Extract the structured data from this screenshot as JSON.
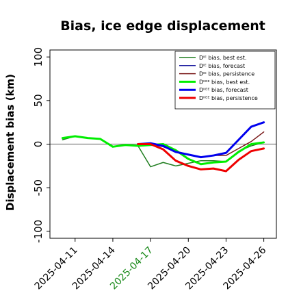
{
  "chart_data": {
    "type": "line",
    "title": "Bias, ice edge displacement",
    "ylabel": "Displacement bias (km)",
    "xlabel": "",
    "ylim": [
      -108,
      108
    ],
    "xlim": [
      "2025-04-09",
      "2025-04-27"
    ],
    "yticks": [
      -100,
      -50,
      0,
      50,
      100
    ],
    "xticks": [
      {
        "date": "2025-04-11",
        "label": "2025-04-11",
        "color": "#000000"
      },
      {
        "date": "2025-04-14",
        "label": "2025-04-14",
        "color": "#000000"
      },
      {
        "date": "2025-04-17",
        "label": "2025-04-17",
        "color": "#1a8a1a"
      },
      {
        "date": "2025-04-20",
        "label": "2025-04-20",
        "color": "#000000"
      },
      {
        "date": "2025-04-23",
        "label": "2025-04-23",
        "color": "#000000"
      },
      {
        "date": "2025-04-26",
        "label": "2025-04-26",
        "color": "#000000"
      }
    ],
    "zero_line": true,
    "legend_position": "top-right",
    "series": [
      {
        "name": "Dᴵᴱ bias, best est.",
        "color": "#1e7d1e",
        "width": 1.5,
        "points": [
          [
            "2025-04-10",
            5
          ],
          [
            "2025-04-11",
            9
          ],
          [
            "2025-04-12",
            7
          ],
          [
            "2025-04-13",
            6
          ],
          [
            "2025-04-14",
            -3
          ],
          [
            "2025-04-15",
            -1
          ],
          [
            "2025-04-16",
            -2
          ],
          [
            "2025-04-17",
            -26
          ],
          [
            "2025-04-18",
            -21
          ],
          [
            "2025-04-19",
            -25
          ],
          [
            "2025-04-20",
            -22
          ],
          [
            "2025-04-21",
            -19
          ],
          [
            "2025-04-22",
            -19
          ],
          [
            "2025-04-23",
            -20
          ],
          [
            "2025-04-24",
            -8
          ],
          [
            "2025-04-25",
            -2
          ],
          [
            "2025-04-26",
            2
          ]
        ]
      },
      {
        "name": "Dᴵᴱ bias, forecast",
        "color": "#1a1a9e",
        "width": 1.5,
        "points": [
          [
            "2025-04-16",
            0
          ],
          [
            "2025-04-17",
            0
          ],
          [
            "2025-04-18",
            -3
          ],
          [
            "2025-04-19",
            -9
          ],
          [
            "2025-04-20",
            -12
          ],
          [
            "2025-04-21",
            -15
          ],
          [
            "2025-04-22",
            -13
          ],
          [
            "2025-04-23",
            -10
          ],
          [
            "2025-04-24",
            5
          ],
          [
            "2025-04-25",
            20
          ],
          [
            "2025-04-26",
            25
          ]
        ]
      },
      {
        "name": "Dᴵᴱ bias, persistence",
        "color": "#7a1a1a",
        "width": 1.5,
        "points": [
          [
            "2025-04-16",
            0
          ],
          [
            "2025-04-17",
            1
          ],
          [
            "2025-04-18",
            -2
          ],
          [
            "2025-04-19",
            -8
          ],
          [
            "2025-04-20",
            -12
          ],
          [
            "2025-04-21",
            -15
          ],
          [
            "2025-04-22",
            -13
          ],
          [
            "2025-04-23",
            -13
          ],
          [
            "2025-04-24",
            -5
          ],
          [
            "2025-04-25",
            3
          ],
          [
            "2025-04-26",
            14
          ]
        ]
      },
      {
        "name": "Dᴵᴵᴱᴱ bias, best est.",
        "color": "#00ee00",
        "width": 3,
        "points": [
          [
            "2025-04-10",
            7
          ],
          [
            "2025-04-11",
            9
          ],
          [
            "2025-04-12",
            7
          ],
          [
            "2025-04-13",
            6
          ],
          [
            "2025-04-14",
            -3
          ],
          [
            "2025-04-15",
            -1
          ],
          [
            "2025-04-16",
            -2
          ],
          [
            "2025-04-17",
            -1
          ],
          [
            "2025-04-18",
            0
          ],
          [
            "2025-04-19",
            -7
          ],
          [
            "2025-04-20",
            -17
          ],
          [
            "2025-04-21",
            -23
          ],
          [
            "2025-04-22",
            -21
          ],
          [
            "2025-04-23",
            -20
          ],
          [
            "2025-04-24",
            -9
          ],
          [
            "2025-04-25",
            0
          ],
          [
            "2025-04-26",
            2
          ]
        ]
      },
      {
        "name": "Dᴵᴵᴱᴱ bias, forecast",
        "color": "#0000ee",
        "width": 3,
        "points": [
          [
            "2025-04-16",
            0
          ],
          [
            "2025-04-17",
            1
          ],
          [
            "2025-04-18",
            -2
          ],
          [
            "2025-04-19",
            -9
          ],
          [
            "2025-04-20",
            -12
          ],
          [
            "2025-04-21",
            -15
          ],
          [
            "2025-04-22",
            -13
          ],
          [
            "2025-04-23",
            -10
          ],
          [
            "2025-04-24",
            5
          ],
          [
            "2025-04-25",
            20
          ],
          [
            "2025-04-26",
            25
          ]
        ]
      },
      {
        "name": "Dᴵᴵᴱᴱ bias, persistence",
        "color": "#ee0000",
        "width": 3,
        "points": [
          [
            "2025-04-16",
            0
          ],
          [
            "2025-04-17",
            0
          ],
          [
            "2025-04-18",
            -6
          ],
          [
            "2025-04-19",
            -19
          ],
          [
            "2025-04-20",
            -25
          ],
          [
            "2025-04-21",
            -29
          ],
          [
            "2025-04-22",
            -28
          ],
          [
            "2025-04-23",
            -31
          ],
          [
            "2025-04-24",
            -18
          ],
          [
            "2025-04-25",
            -8
          ],
          [
            "2025-04-26",
            -5
          ]
        ]
      }
    ]
  }
}
